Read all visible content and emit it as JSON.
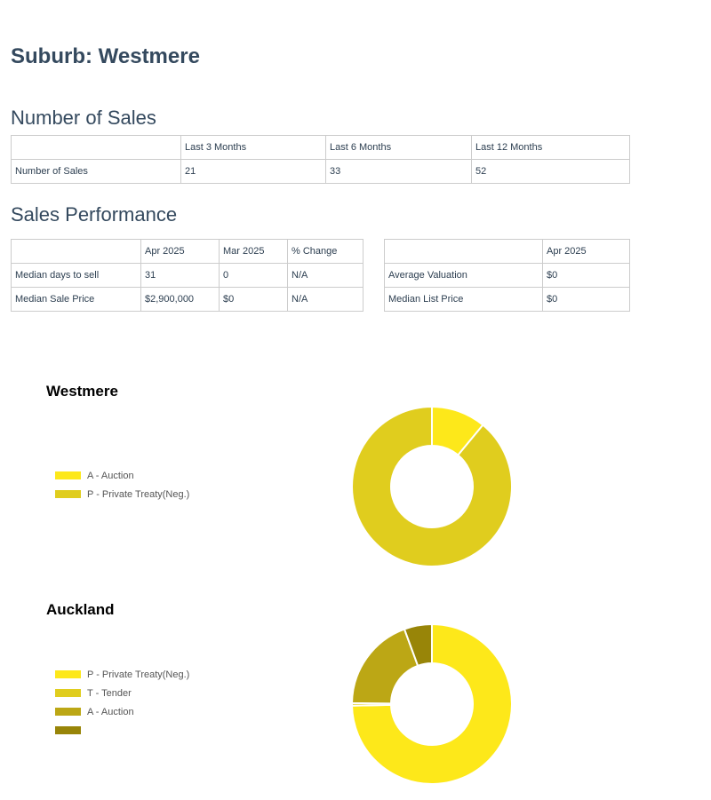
{
  "page": {
    "title": "Suburb: Westmere"
  },
  "sales": {
    "heading": "Number of Sales",
    "headers": [
      "",
      "Last 3 Months",
      "Last 6 Months",
      "Last 12 Months"
    ],
    "rows": [
      [
        "Number of Sales",
        "21",
        "33",
        "52"
      ]
    ]
  },
  "performance": {
    "heading": "Sales Performance",
    "left": {
      "headers": [
        "",
        "Apr 2025",
        "Mar 2025",
        "% Change"
      ],
      "rows": [
        [
          "Median days to sell",
          "31",
          "0",
          "N/A"
        ],
        [
          "Median Sale Price",
          "$2,900,000",
          "$0",
          "N/A"
        ]
      ]
    },
    "right": {
      "headers": [
        "",
        "Apr 2025"
      ],
      "rows": [
        [
          "Average Valuation",
          "$0"
        ],
        [
          "Median List Price",
          "$0"
        ]
      ]
    }
  },
  "chart_data": [
    {
      "type": "pie",
      "title": "Westmere",
      "donut": true,
      "legend_position": "left",
      "categories": [
        "A - Auction",
        "P - Private Treaty(Neg.)"
      ],
      "values": [
        11,
        89
      ],
      "colors": [
        "#fde81a",
        "#e0cd1e"
      ]
    },
    {
      "type": "pie",
      "title": "Auckland",
      "donut": true,
      "legend_position": "left",
      "categories": [
        "P - Private Treaty(Neg.)",
        "T - Tender",
        "A - Auction",
        ""
      ],
      "values": [
        74.7,
        0.5,
        19.2,
        5.6
      ],
      "colors": [
        "#fde81a",
        "#e0cd1e",
        "#bca715",
        "#988508"
      ]
    }
  ]
}
